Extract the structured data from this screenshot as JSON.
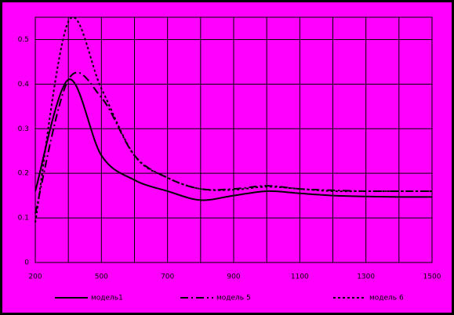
{
  "chart_data": {
    "type": "line",
    "categories": [
      "200",
      null,
      "500",
      null,
      "700",
      null,
      "900",
      null,
      "1100",
      null,
      "1300",
      null,
      "1500"
    ],
    "series": [
      {
        "name": "модель1",
        "color": "#000000",
        "dash": "solid",
        "values": [
          0.16,
          0.41,
          0.24,
          0.185,
          0.16,
          0.14,
          0.15,
          0.16,
          0.155,
          0.15,
          0.148,
          0.147,
          0.147
        ]
      },
      {
        "name": "модель 5",
        "color": "#000000",
        "dash": "dashdot",
        "values": [
          0.11,
          0.41,
          0.37,
          0.24,
          0.19,
          0.165,
          0.165,
          0.172,
          0.165,
          0.162,
          0.16,
          0.16,
          0.16
        ]
      },
      {
        "name": "модель 6",
        "color": "#000000",
        "dash": "dot",
        "values": [
          0.09,
          0.54,
          0.39,
          0.24,
          0.19,
          0.165,
          0.163,
          0.17,
          0.165,
          0.16,
          0.16,
          0.16,
          0.16
        ]
      }
    ],
    "ylim": [
      0,
      0.55
    ],
    "yticks": [
      0,
      0.1,
      0.2,
      0.3,
      0.4,
      0.5
    ],
    "grid": true
  }
}
